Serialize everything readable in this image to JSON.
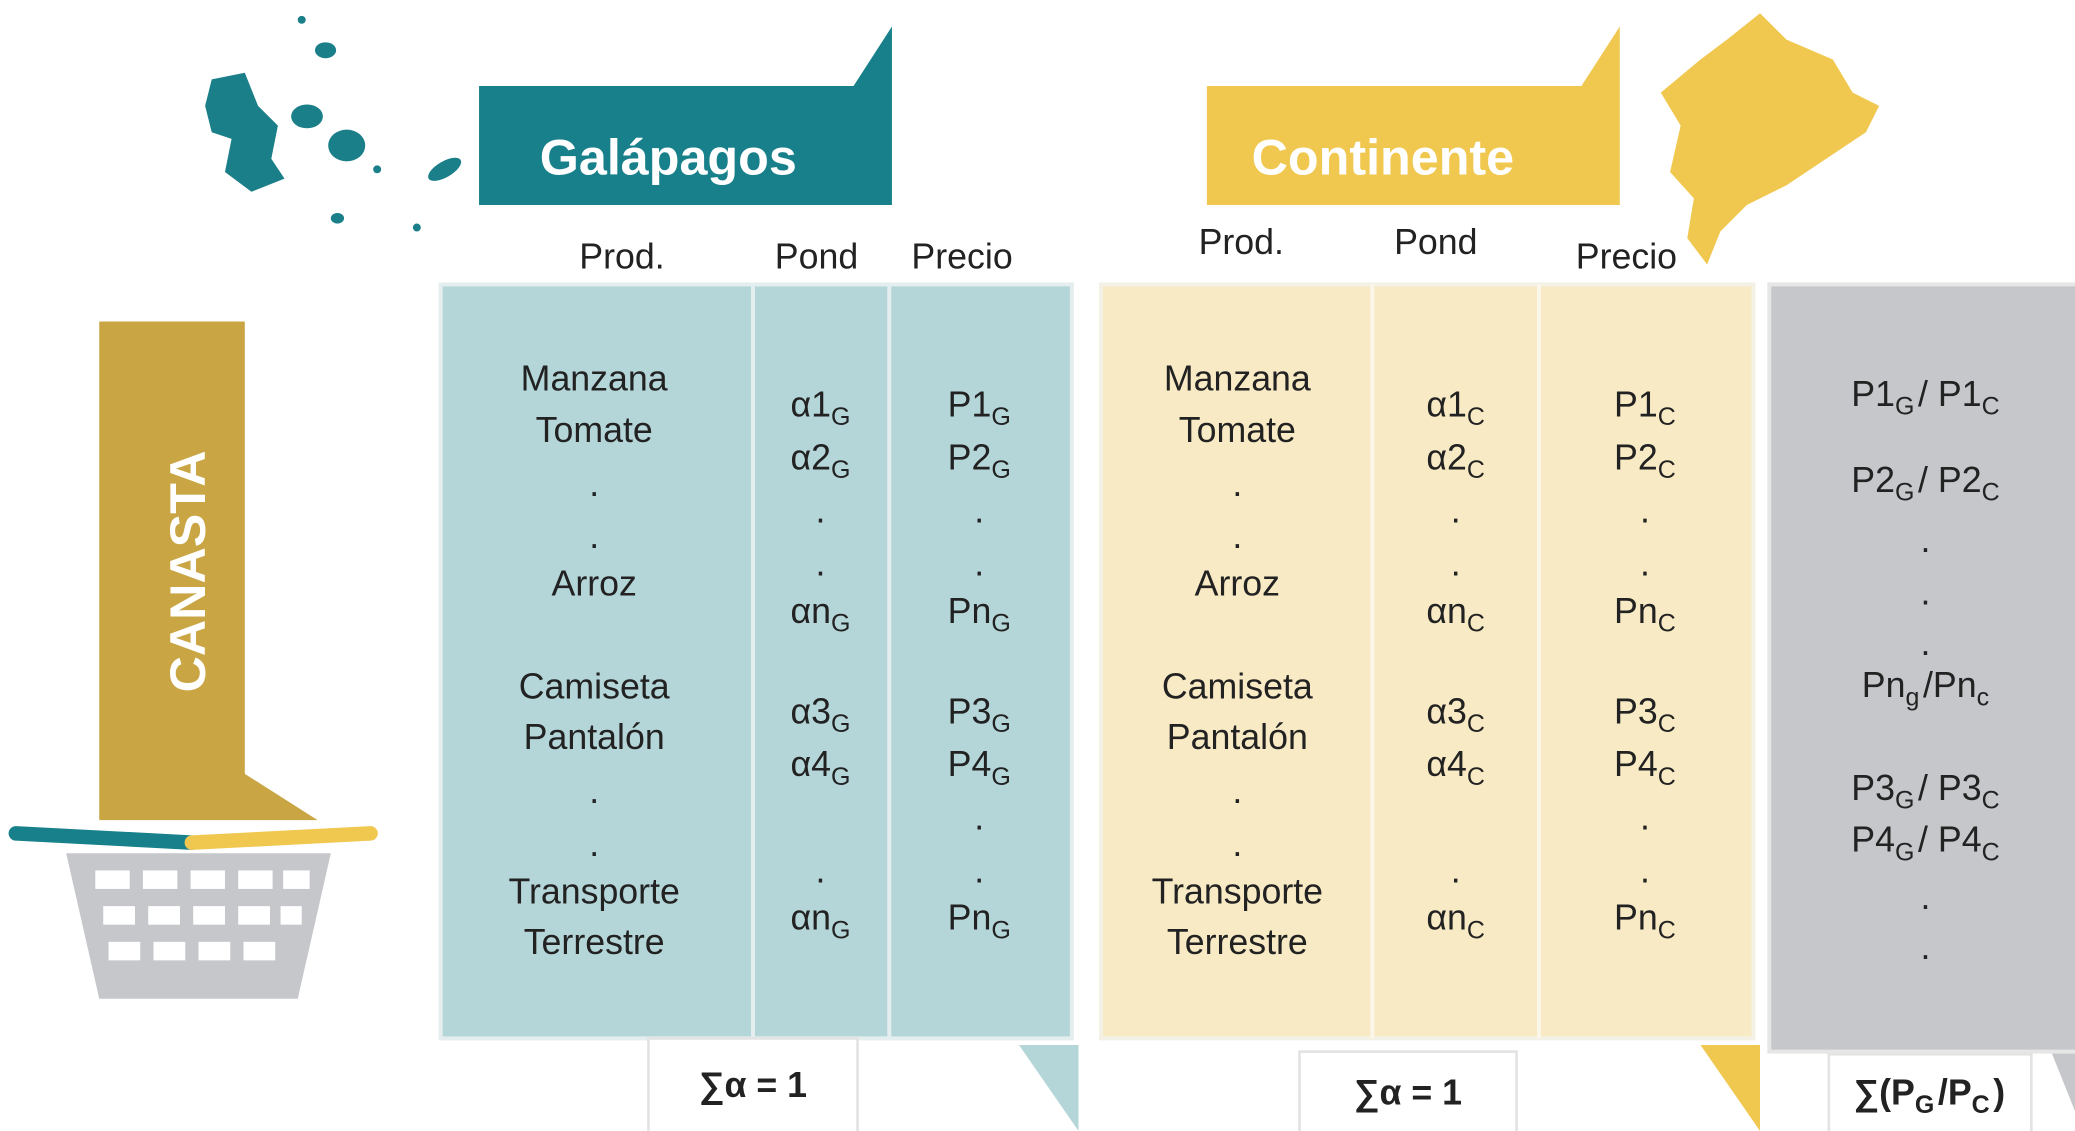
{
  "side_label": "CANASTA",
  "regions": [
    {
      "title": "Galápagos",
      "headers": [
        "Prod.",
        "Pond",
        "Precio"
      ],
      "columns": [
        [
          "Manzana",
          "Tomate",
          ".",
          ".",
          "Arroz",
          "Camiseta",
          "Pantalón",
          ".",
          ".",
          "Transporte",
          "Terrestre"
        ],
        [
          [
            {
              "text": "α1",
              "sub": "G"
            }
          ],
          [
            {
              "text": "α2",
              "sub": "G"
            }
          ],
          ".",
          ".",
          [
            {
              "text": "αn",
              "sub": "G"
            }
          ],
          [
            {
              "text": "α3",
              "sub": "G"
            }
          ],
          [
            {
              "text": "α4",
              "sub": "G"
            }
          ],
          ".",
          [
            {
              "text": "αn",
              "sub": "G"
            }
          ]
        ],
        [
          [
            {
              "text": "P1",
              "sub": "G"
            }
          ],
          [
            {
              "text": "P2",
              "sub": "G"
            }
          ],
          ".",
          ".",
          [
            {
              "text": "Pn",
              "sub": "G"
            }
          ],
          [
            {
              "text": "P3",
              "sub": "G"
            }
          ],
          [
            {
              "text": "P4",
              "sub": "G"
            }
          ],
          ".",
          ".",
          [
            {
              "text": "Pn",
              "sub": "G"
            }
          ]
        ]
      ],
      "footer": "∑α = 1"
    },
    {
      "title": "Continente",
      "headers": [
        "Prod.",
        "Pond",
        "Precio"
      ],
      "columns": [
        [
          "Manzana",
          "Tomate",
          ".",
          ".",
          "Arroz",
          "Camiseta",
          "Pantalón",
          ".",
          ".",
          "Transporte",
          "Terrestre"
        ],
        [
          [
            {
              "text": "α1",
              "sub": "C"
            }
          ],
          [
            {
              "text": "α2",
              "sub": "C"
            }
          ],
          ".",
          ".",
          [
            {
              "text": "αn",
              "sub": "C"
            }
          ],
          [
            {
              "text": "α3",
              "sub": "C"
            }
          ],
          [
            {
              "text": "α4",
              "sub": "C"
            }
          ],
          ".",
          [
            {
              "text": "αn",
              "sub": "C"
            }
          ]
        ],
        [
          [
            {
              "text": "P1",
              "sub": "C"
            }
          ],
          [
            {
              "text": "P2",
              "sub": "C"
            }
          ],
          ".",
          ".",
          [
            {
              "text": "Pn",
              "sub": "C"
            }
          ],
          [
            {
              "text": "P3",
              "sub": "C"
            }
          ],
          [
            {
              "text": "P4",
              "sub": "C"
            }
          ],
          ".",
          ".",
          [
            {
              "text": "Pn",
              "sub": "C"
            }
          ]
        ]
      ],
      "footer": "∑α = 1"
    }
  ],
  "ratio": {
    "lines": [
      [
        {
          "text": "P1",
          "sub": "G"
        },
        {
          "text": "/ P1",
          "sub": "C"
        }
      ],
      [
        {
          "text": "P2",
          "sub": "G"
        },
        {
          "text": "/ P2",
          "sub": "C"
        }
      ],
      ".",
      ".",
      ".",
      [
        {
          "text": "Pn",
          "sub": "g"
        },
        {
          "text": "/Pn",
          "sub": "c"
        }
      ],
      [
        {
          "text": "P3",
          "sub": "G"
        },
        {
          "text": "/ P3",
          "sub": "C"
        }
      ],
      [
        {
          "text": "P4",
          "sub": "G"
        },
        {
          "text": "/ P4",
          "sub": "C"
        }
      ],
      ".",
      "."
    ],
    "footer": [
      {
        "text": "∑(P",
        "sub": "G"
      },
      {
        "text": "/P",
        "sub": "C"
      },
      {
        "text": ")"
      }
    ]
  }
}
